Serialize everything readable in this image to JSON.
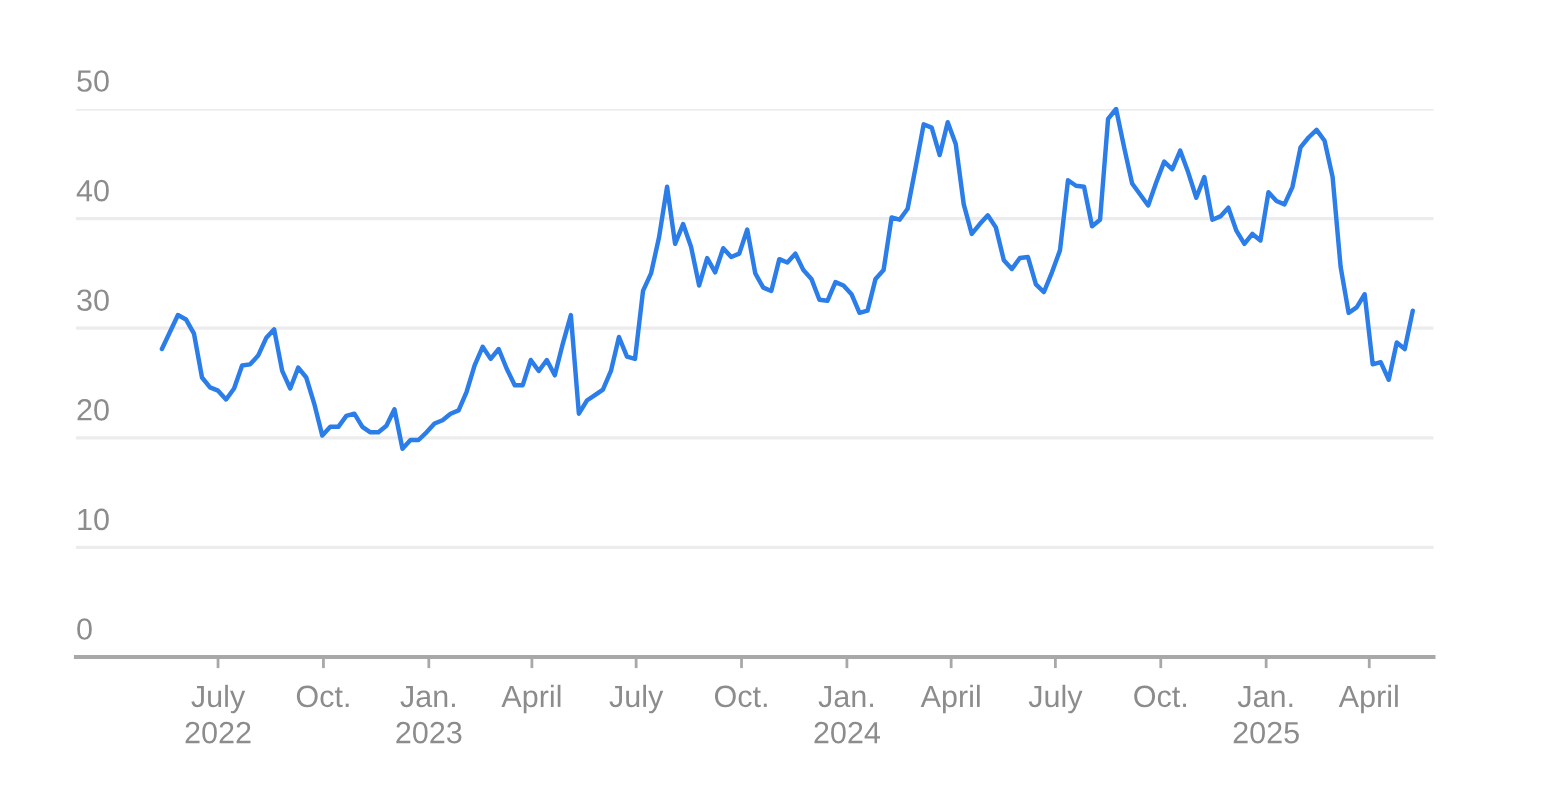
{
  "chart_data": {
    "type": "line",
    "x": [
      "2022-05-13",
      "2022-05-27",
      "2022-06-03",
      "2022-06-10",
      "2022-06-17",
      "2022-06-24",
      "2022-07-01",
      "2022-07-08",
      "2022-07-15",
      "2022-07-22",
      "2022-07-29",
      "2022-08-05",
      "2022-08-12",
      "2022-08-19",
      "2022-08-26",
      "2022-09-02",
      "2022-09-09",
      "2022-09-16",
      "2022-09-23",
      "2022-09-30",
      "2022-10-07",
      "2022-10-14",
      "2022-10-21",
      "2022-10-28",
      "2022-11-04",
      "2022-11-11",
      "2022-11-18",
      "2022-11-25",
      "2022-12-02",
      "2022-12-09",
      "2022-12-16",
      "2022-12-23",
      "2022-12-30",
      "2023-01-06",
      "2023-01-13",
      "2023-01-20",
      "2023-01-27",
      "2023-02-03",
      "2023-02-10",
      "2023-02-17",
      "2023-02-24",
      "2023-03-03",
      "2023-03-10",
      "2023-03-17",
      "2023-03-24",
      "2023-03-31",
      "2023-04-07",
      "2023-04-14",
      "2023-04-21",
      "2023-04-28",
      "2023-05-05",
      "2023-05-12",
      "2023-05-19",
      "2023-05-26",
      "2023-06-02",
      "2023-06-09",
      "2023-06-16",
      "2023-06-23",
      "2023-06-30",
      "2023-07-07",
      "2023-07-14",
      "2023-07-21",
      "2023-07-28",
      "2023-08-04",
      "2023-08-11",
      "2023-08-18",
      "2023-08-25",
      "2023-09-01",
      "2023-09-08",
      "2023-09-15",
      "2023-09-22",
      "2023-09-29",
      "2023-10-06",
      "2023-10-13",
      "2023-10-20",
      "2023-10-27",
      "2023-11-03",
      "2023-11-10",
      "2023-11-17",
      "2023-11-24",
      "2023-12-01",
      "2023-12-08",
      "2023-12-15",
      "2023-12-22",
      "2023-12-29",
      "2024-01-05",
      "2024-01-12",
      "2024-01-19",
      "2024-01-26",
      "2024-02-02",
      "2024-02-09",
      "2024-02-16",
      "2024-02-23",
      "2024-03-01",
      "2024-03-08",
      "2024-03-15",
      "2024-03-22",
      "2024-03-29",
      "2024-04-05",
      "2024-04-12",
      "2024-04-19",
      "2024-04-26",
      "2024-05-03",
      "2024-05-10",
      "2024-05-17",
      "2024-05-24",
      "2024-05-31",
      "2024-06-07",
      "2024-06-14",
      "2024-06-21",
      "2024-06-28",
      "2024-07-05",
      "2024-07-12",
      "2024-07-19",
      "2024-07-26",
      "2024-08-02",
      "2024-08-09",
      "2024-08-16",
      "2024-08-23",
      "2024-08-30",
      "2024-09-06",
      "2024-09-13",
      "2024-09-20",
      "2024-09-27",
      "2024-10-04",
      "2024-10-11",
      "2024-10-18",
      "2024-10-25",
      "2024-11-01",
      "2024-11-08",
      "2024-11-15",
      "2024-11-22",
      "2024-11-29",
      "2024-12-06",
      "2024-12-13",
      "2024-12-20",
      "2024-12-27",
      "2025-01-03",
      "2025-01-10",
      "2025-01-17",
      "2025-01-24",
      "2025-01-31",
      "2025-02-07",
      "2025-02-14",
      "2025-02-21",
      "2025-02-28",
      "2025-03-07",
      "2025-03-14",
      "2025-03-21",
      "2025-03-28",
      "2025-04-04",
      "2025-04-11",
      "2025-04-18",
      "2025-04-25",
      "2025-05-02",
      "2025-05-09"
    ],
    "series": [
      {
        "color": "#2b7de9",
        "values": [
          28.1,
          31.2,
          30.8,
          29.5,
          25.5,
          24.6,
          24.3,
          23.5,
          24.5,
          26.6,
          26.7,
          27.5,
          29.1,
          29.9,
          26.1,
          24.5,
          26.4,
          25.5,
          23.1,
          20.2,
          21.0,
          21.0,
          22.0,
          22.2,
          21.0,
          20.5,
          20.5,
          21.1,
          22.6,
          19.0,
          19.8,
          19.8,
          20.5,
          21.3,
          21.6,
          22.2,
          22.5,
          24.2,
          26.6,
          28.3,
          27.2,
          28.1,
          26.3,
          24.8,
          24.8,
          27.1,
          26.1,
          27.1,
          25.7,
          28.6,
          31.2,
          22.2,
          23.4,
          23.9,
          24.4,
          26.1,
          29.2,
          27.4,
          27.2,
          33.4,
          35.0,
          38.3,
          42.9,
          37.7,
          39.5,
          37.4,
          33.9,
          36.4,
          35.1,
          37.3,
          36.5,
          36.8,
          39.0,
          35.0,
          33.7,
          33.4,
          36.3,
          36.0,
          36.8,
          35.3,
          34.5,
          32.6,
          32.5,
          34.2,
          33.9,
          33.1,
          31.4,
          31.6,
          34.5,
          35.3,
          40.1,
          39.9,
          40.9,
          44.7,
          48.6,
          48.3,
          45.8,
          48.8,
          46.8,
          41.3,
          38.6,
          39.5,
          40.3,
          39.2,
          36.2,
          35.4,
          36.4,
          36.5,
          34.0,
          33.3,
          35.1,
          37.1,
          43.5,
          43.0,
          42.9,
          39.3,
          39.9,
          49.1,
          50.0,
          46.5,
          43.2,
          42.2,
          41.2,
          43.3,
          45.2,
          44.5,
          46.2,
          44.2,
          41.9,
          43.8,
          39.9,
          40.2,
          41.0,
          38.9,
          37.7,
          38.6,
          38.0,
          42.4,
          41.6,
          41.3,
          42.9,
          46.5,
          47.4,
          48.1,
          47.1,
          43.8,
          35.6,
          31.4,
          31.9,
          33.1,
          26.7,
          26.9,
          25.3,
          28.7,
          28.1,
          31.6
        ]
      }
    ],
    "xlim": [
      "2022-02-27",
      "2025-05-27"
    ],
    "xticks": [
      {
        "value": "2022-07-01",
        "label": "July\n2022"
      },
      {
        "value": "2022-10-01",
        "label": "Oct."
      },
      {
        "value": "2023-01-01",
        "label": "Jan.\n2023"
      },
      {
        "value": "2023-04-01",
        "label": "April"
      },
      {
        "value": "2023-07-01",
        "label": "July"
      },
      {
        "value": "2023-10-01",
        "label": "Oct."
      },
      {
        "value": "2024-01-01",
        "label": "Jan.\n2024"
      },
      {
        "value": "2024-04-01",
        "label": "April"
      },
      {
        "value": "2024-07-01",
        "label": "July"
      },
      {
        "value": "2024-10-01",
        "label": "Oct."
      },
      {
        "value": "2025-01-01",
        "label": "Jan.\n2025"
      },
      {
        "value": "2025-04-01",
        "label": "April"
      }
    ],
    "ylim": [
      0,
      50
    ],
    "yticks": [
      0,
      10,
      20,
      30,
      40,
      50
    ],
    "grid": "y",
    "line_style": "solid"
  }
}
